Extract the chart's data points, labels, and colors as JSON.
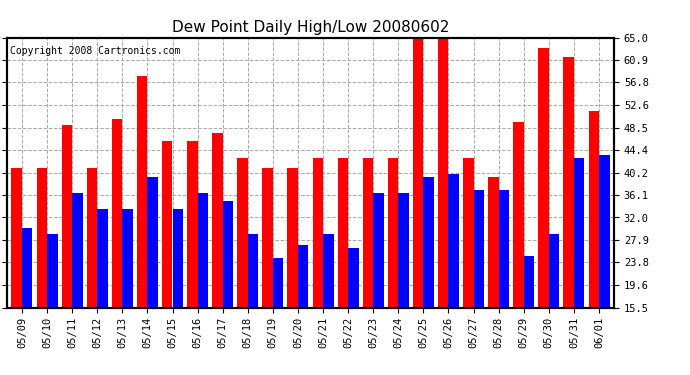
{
  "title": "Dew Point Daily High/Low 20080602",
  "copyright": "Copyright 2008 Cartronics.com",
  "dates": [
    "05/09",
    "05/10",
    "05/11",
    "05/12",
    "05/13",
    "05/14",
    "05/15",
    "05/16",
    "05/17",
    "05/18",
    "05/19",
    "05/20",
    "05/21",
    "05/22",
    "05/23",
    "05/24",
    "05/25",
    "05/26",
    "05/27",
    "05/28",
    "05/29",
    "05/30",
    "05/31",
    "06/01"
  ],
  "highs": [
    41.0,
    41.0,
    49.0,
    41.0,
    50.0,
    58.0,
    46.0,
    46.0,
    47.5,
    43.0,
    41.0,
    41.0,
    43.0,
    43.0,
    43.0,
    43.0,
    65.0,
    65.0,
    43.0,
    39.5,
    49.5,
    63.0,
    61.5,
    51.5
  ],
  "lows": [
    30.0,
    29.0,
    36.5,
    33.5,
    33.5,
    39.5,
    33.5,
    36.5,
    35.0,
    29.0,
    24.5,
    27.0,
    29.0,
    26.5,
    36.5,
    36.5,
    39.5,
    40.0,
    37.0,
    37.0,
    25.0,
    29.0,
    43.0,
    43.5
  ],
  "bar_color_high": "#ff0000",
  "bar_color_low": "#0000ff",
  "background_color": "#ffffff",
  "plot_bg_color": "#ffffff",
  "grid_color": "#aaaaaa",
  "ymin": 15.5,
  "ymax": 65.0,
  "yticks": [
    15.5,
    19.6,
    23.8,
    27.9,
    32.0,
    36.1,
    40.2,
    44.4,
    48.5,
    52.6,
    56.8,
    60.9,
    65.0
  ],
  "title_fontsize": 11,
  "tick_fontsize": 7.5,
  "copyright_fontsize": 7
}
